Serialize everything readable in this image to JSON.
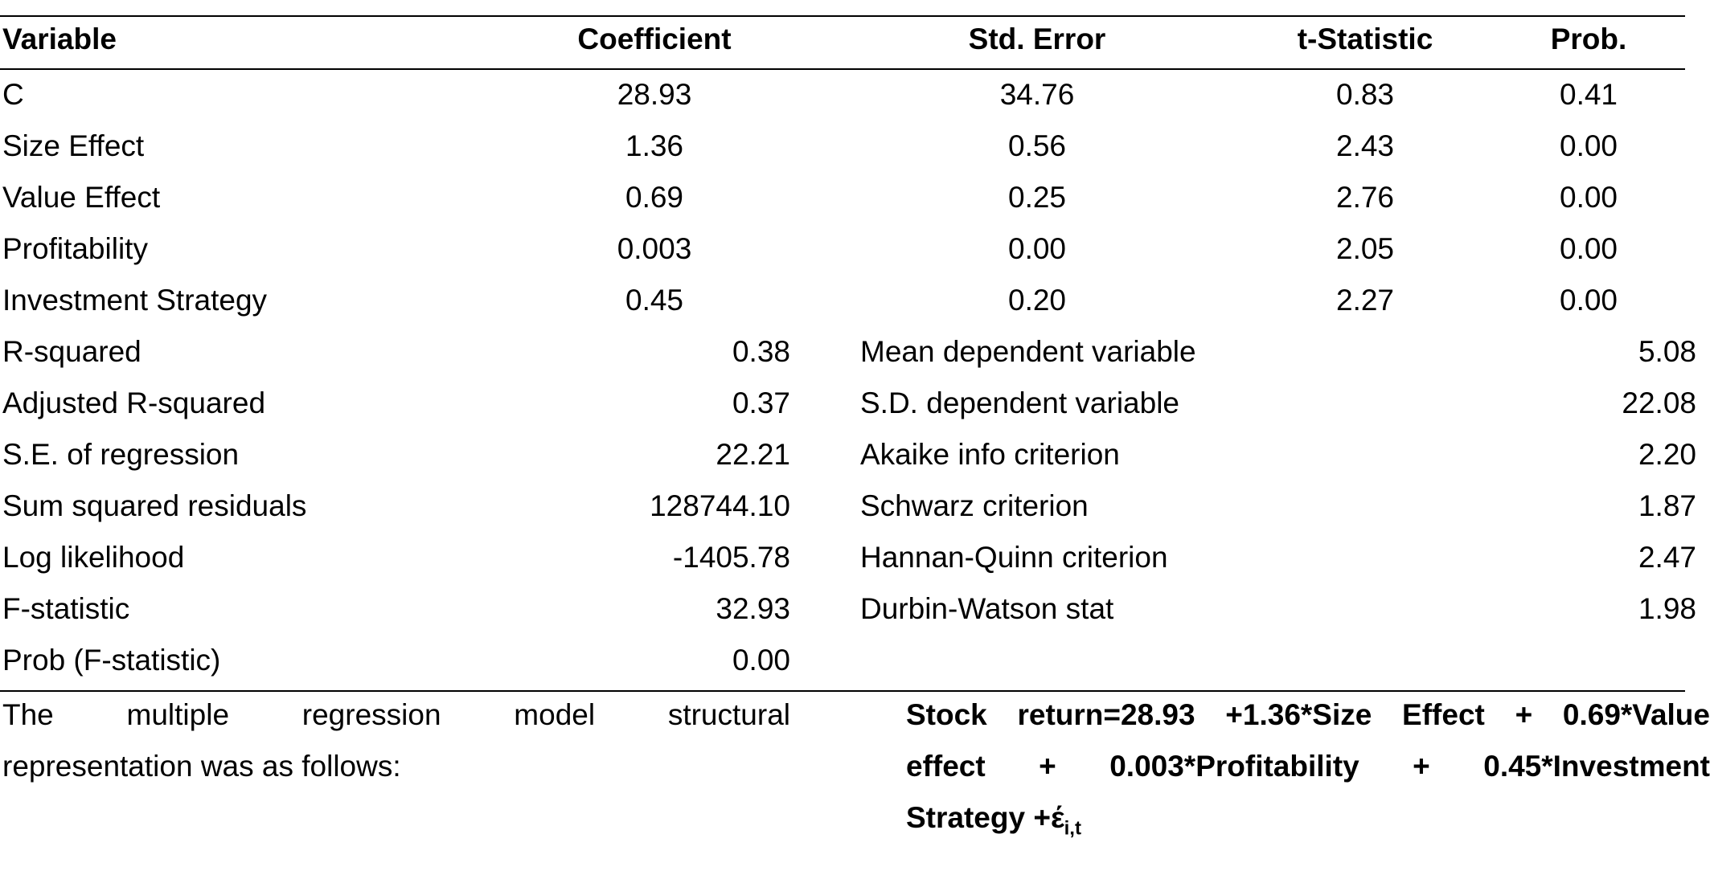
{
  "table": {
    "headers": [
      "Variable",
      "Coefficient",
      "Std. Error",
      "t-Statistic",
      "Prob."
    ],
    "rows": [
      [
        "C",
        "28.93",
        "34.76",
        "0.83",
        "0.41"
      ],
      [
        "Size Effect",
        "1.36",
        "0.56",
        "2.43",
        "0.00"
      ],
      [
        "Value Effect",
        "0.69",
        "0.25",
        "2.76",
        "0.00"
      ],
      [
        "Profitability",
        "0.003",
        "0.00",
        "2.05",
        "0.00"
      ],
      [
        "Investment Strategy",
        "0.45",
        "0.20",
        "2.27",
        "0.00"
      ]
    ],
    "stats_left": [
      {
        "label": "R-squared",
        "value": "0.38"
      },
      {
        "label": "Adjusted R-squared",
        "value": "0.37"
      },
      {
        "label": "S.E. of regression",
        "value": "22.21"
      },
      {
        "label": "Sum squared residuals",
        "value": "128744.10"
      },
      {
        "label": "Log likelihood",
        "value": "-1405.78"
      },
      {
        "label": "F-statistic",
        "value": "32.93"
      },
      {
        "label": "Prob (F-statistic)",
        "value": "0.00"
      }
    ],
    "stats_right": [
      {
        "label": "Mean dependent variable",
        "value": "5.08"
      },
      {
        "label": "S.D. dependent variable",
        "value": "22.08"
      },
      {
        "label": "Akaike info criterion",
        "value": "2.20"
      },
      {
        "label": "Schwarz criterion",
        "value": "1.87"
      },
      {
        "label": "Hannan-Quinn criterion",
        "value": "2.47"
      },
      {
        "label": "Durbin-Watson stat",
        "value": "1.98"
      }
    ]
  },
  "description": {
    "line1": "The multiple regression model structural",
    "line2": "representation was as follows:"
  },
  "equation": {
    "line1": "Stock return=28.93 +1.36*Size Effect + 0.69*Value",
    "line2": "effect + 0.003*Profitability + 0.45*Investment",
    "line3": "Strategy +έ",
    "subscript": "i,t"
  }
}
